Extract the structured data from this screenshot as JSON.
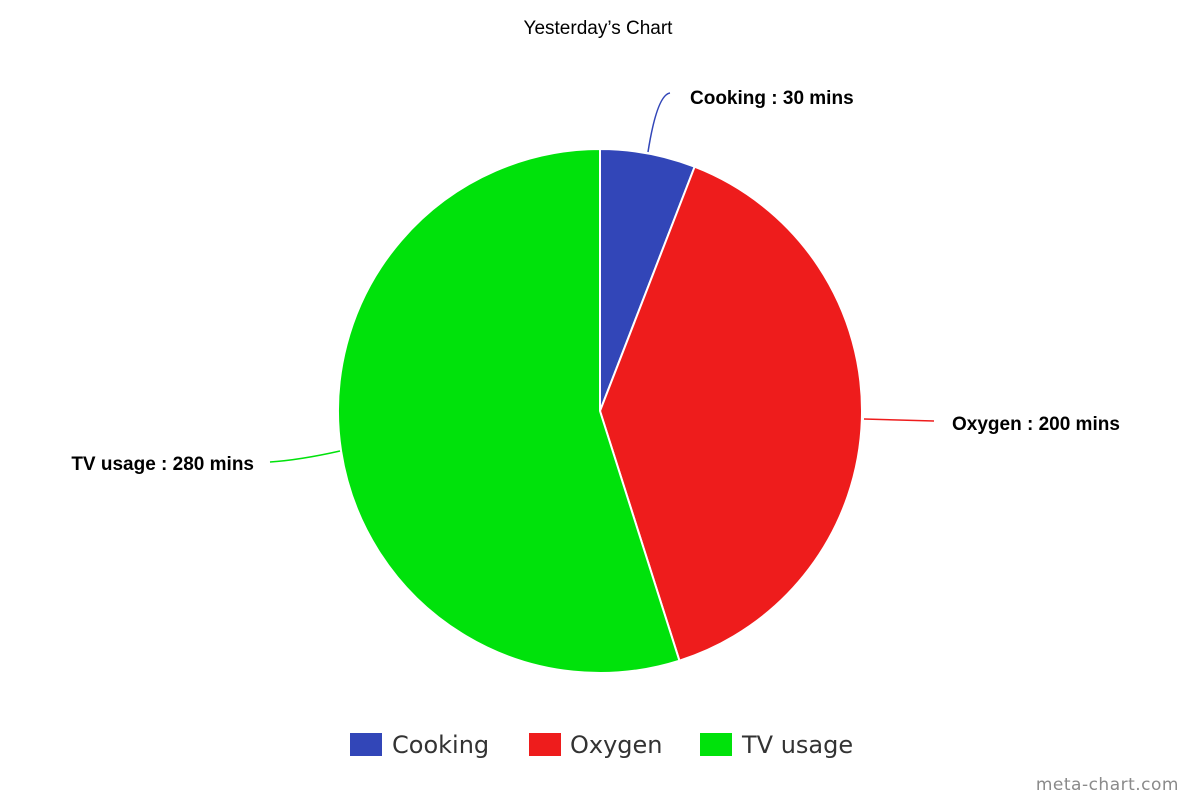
{
  "chart_data": {
    "type": "pie",
    "title": "Yesterday’s Chart",
    "unit_suffix": "mins",
    "label_separator": " : ",
    "categories": [
      "Cooking",
      "Oxygen",
      "TV usage"
    ],
    "values": [
      30,
      200,
      280
    ],
    "colors": [
      "#3246b8",
      "#ee1c1c",
      "#00e20b"
    ],
    "start_angle_deg": 0,
    "direction": "clockwise",
    "legend": {
      "position": "bottom-center",
      "entries": [
        "Cooking",
        "Oxygen",
        "TV usage"
      ]
    },
    "data_labels": [
      "Cooking : 30 mins",
      "Oxygen : 200 mins",
      "TV usage : 280 mins"
    ]
  },
  "watermark": "meta-chart.com"
}
